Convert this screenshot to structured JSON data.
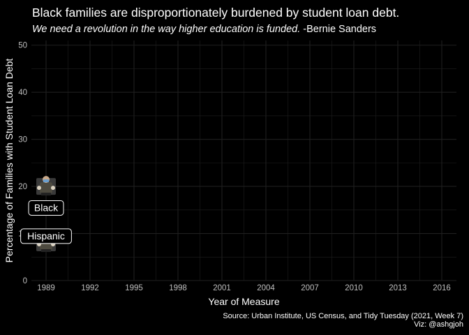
{
  "title": "Black families are disproportionately burdened by student loan debt.",
  "subtitle": {
    "quote": "We need a revolution in the way higher education is funded.",
    "attribution": "-Bernie Sanders"
  },
  "caption": {
    "source": "Source: Urban Institute, US Census, and Tidy Tuesday (2021, Week 7)",
    "viz": "Viz: @ashgjoh"
  },
  "colors": {
    "background": "#000000",
    "grid": "#1f1f1f",
    "text": "#ffffff",
    "tick_text": "#bfbfbf",
    "label_fill": "#000000"
  },
  "chart_data": {
    "type": "scatter",
    "xlabel": "Year of Measure",
    "ylabel": "Percentage of Families with Student Loan Debt",
    "xlim": [
      1988,
      2017
    ],
    "ylim": [
      0,
      51
    ],
    "xticks": [
      1989,
      1992,
      1995,
      1998,
      2001,
      2004,
      2007,
      2010,
      2013,
      2016
    ],
    "yticks": [
      0,
      10,
      20,
      30,
      40,
      50
    ],
    "grid": true,
    "series": [
      {
        "name": "Black",
        "x": [
          1989
        ],
        "y": [
          20
        ],
        "marker": "bernie-sanders-image"
      },
      {
        "name": "Hispanic",
        "x": [
          1989
        ],
        "y": [
          8
        ],
        "marker": "bernie-sanders-image"
      }
    ],
    "annotations": [
      {
        "label": "Black",
        "x": 1989,
        "y": 15.5
      },
      {
        "label": "Hispanic",
        "x": 1989,
        "y": 9.5
      }
    ]
  }
}
